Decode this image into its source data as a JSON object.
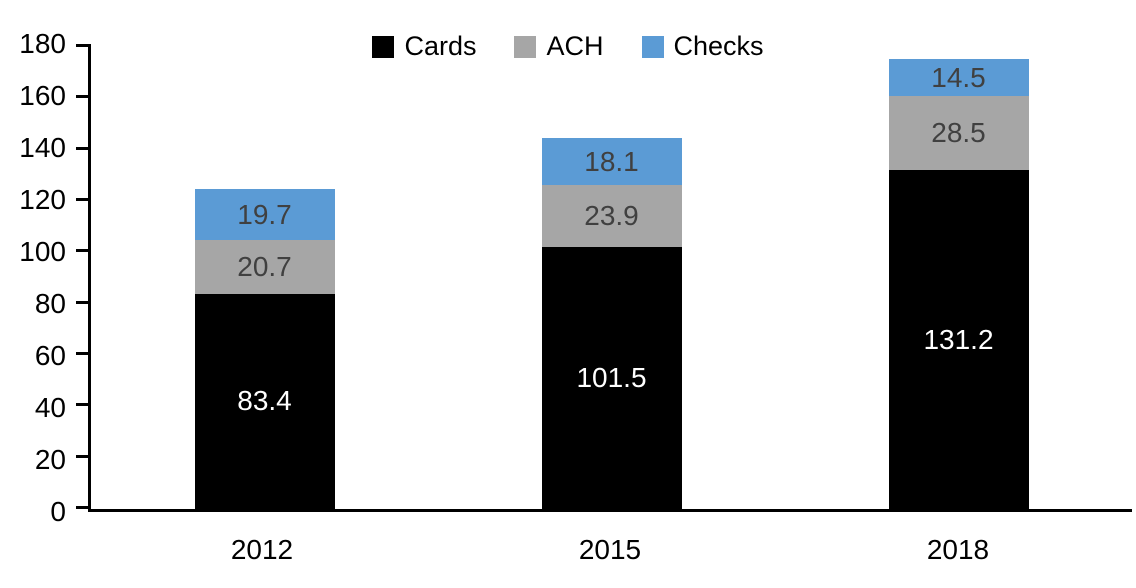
{
  "chart_data": {
    "type": "bar",
    "stacked": true,
    "title": "",
    "xlabel": "",
    "ylabel": "",
    "categories": [
      "2012",
      "2015",
      "2018"
    ],
    "series": [
      {
        "name": "Cards",
        "color": "#000000",
        "label_color": "#FFFFFF",
        "values": [
          83.4,
          101.5,
          131.2
        ]
      },
      {
        "name": "ACH",
        "color": "#A6A6A6",
        "label_color": "#404040",
        "values": [
          20.7,
          23.9,
          28.5
        ]
      },
      {
        "name": "Checks",
        "color": "#5B9BD5",
        "label_color": "#404040",
        "values": [
          19.7,
          18.1,
          14.5
        ]
      }
    ],
    "totals": [
      123.8,
      143.5,
      174.2
    ],
    "ylim": [
      0,
      180
    ],
    "ytick_interval": 20,
    "yticks": [
      "0",
      "20",
      "40",
      "60",
      "80",
      "100",
      "120",
      "140",
      "160",
      "180"
    ],
    "grid": false,
    "legend_position": "top-center",
    "axis_color": "#000000"
  }
}
